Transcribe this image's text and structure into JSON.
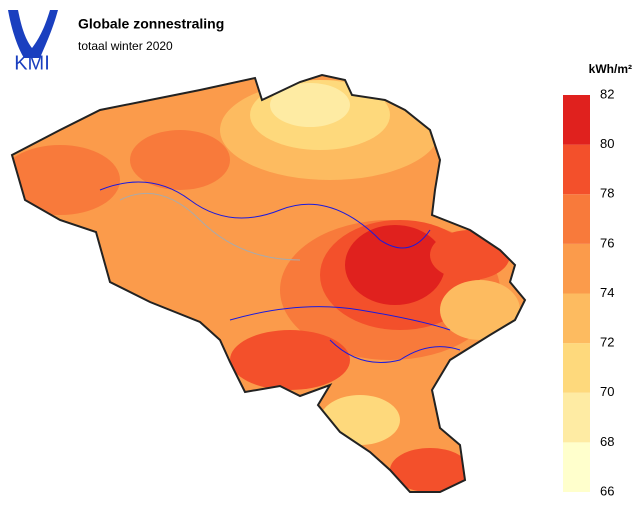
{
  "header": {
    "logo": "KMI",
    "title": "Globale zonnestraling",
    "subtitle": "totaal winter 2020"
  },
  "legend": {
    "unit": "kWh/m²",
    "ticks": [
      66,
      68,
      70,
      72,
      74,
      76,
      78,
      80,
      82
    ],
    "colors": [
      "#ffffcc",
      "#feeba3",
      "#fed97c",
      "#fdbb60",
      "#fb9b4b",
      "#f87a3b",
      "#f3502b",
      "#e0211e"
    ]
  }
}
